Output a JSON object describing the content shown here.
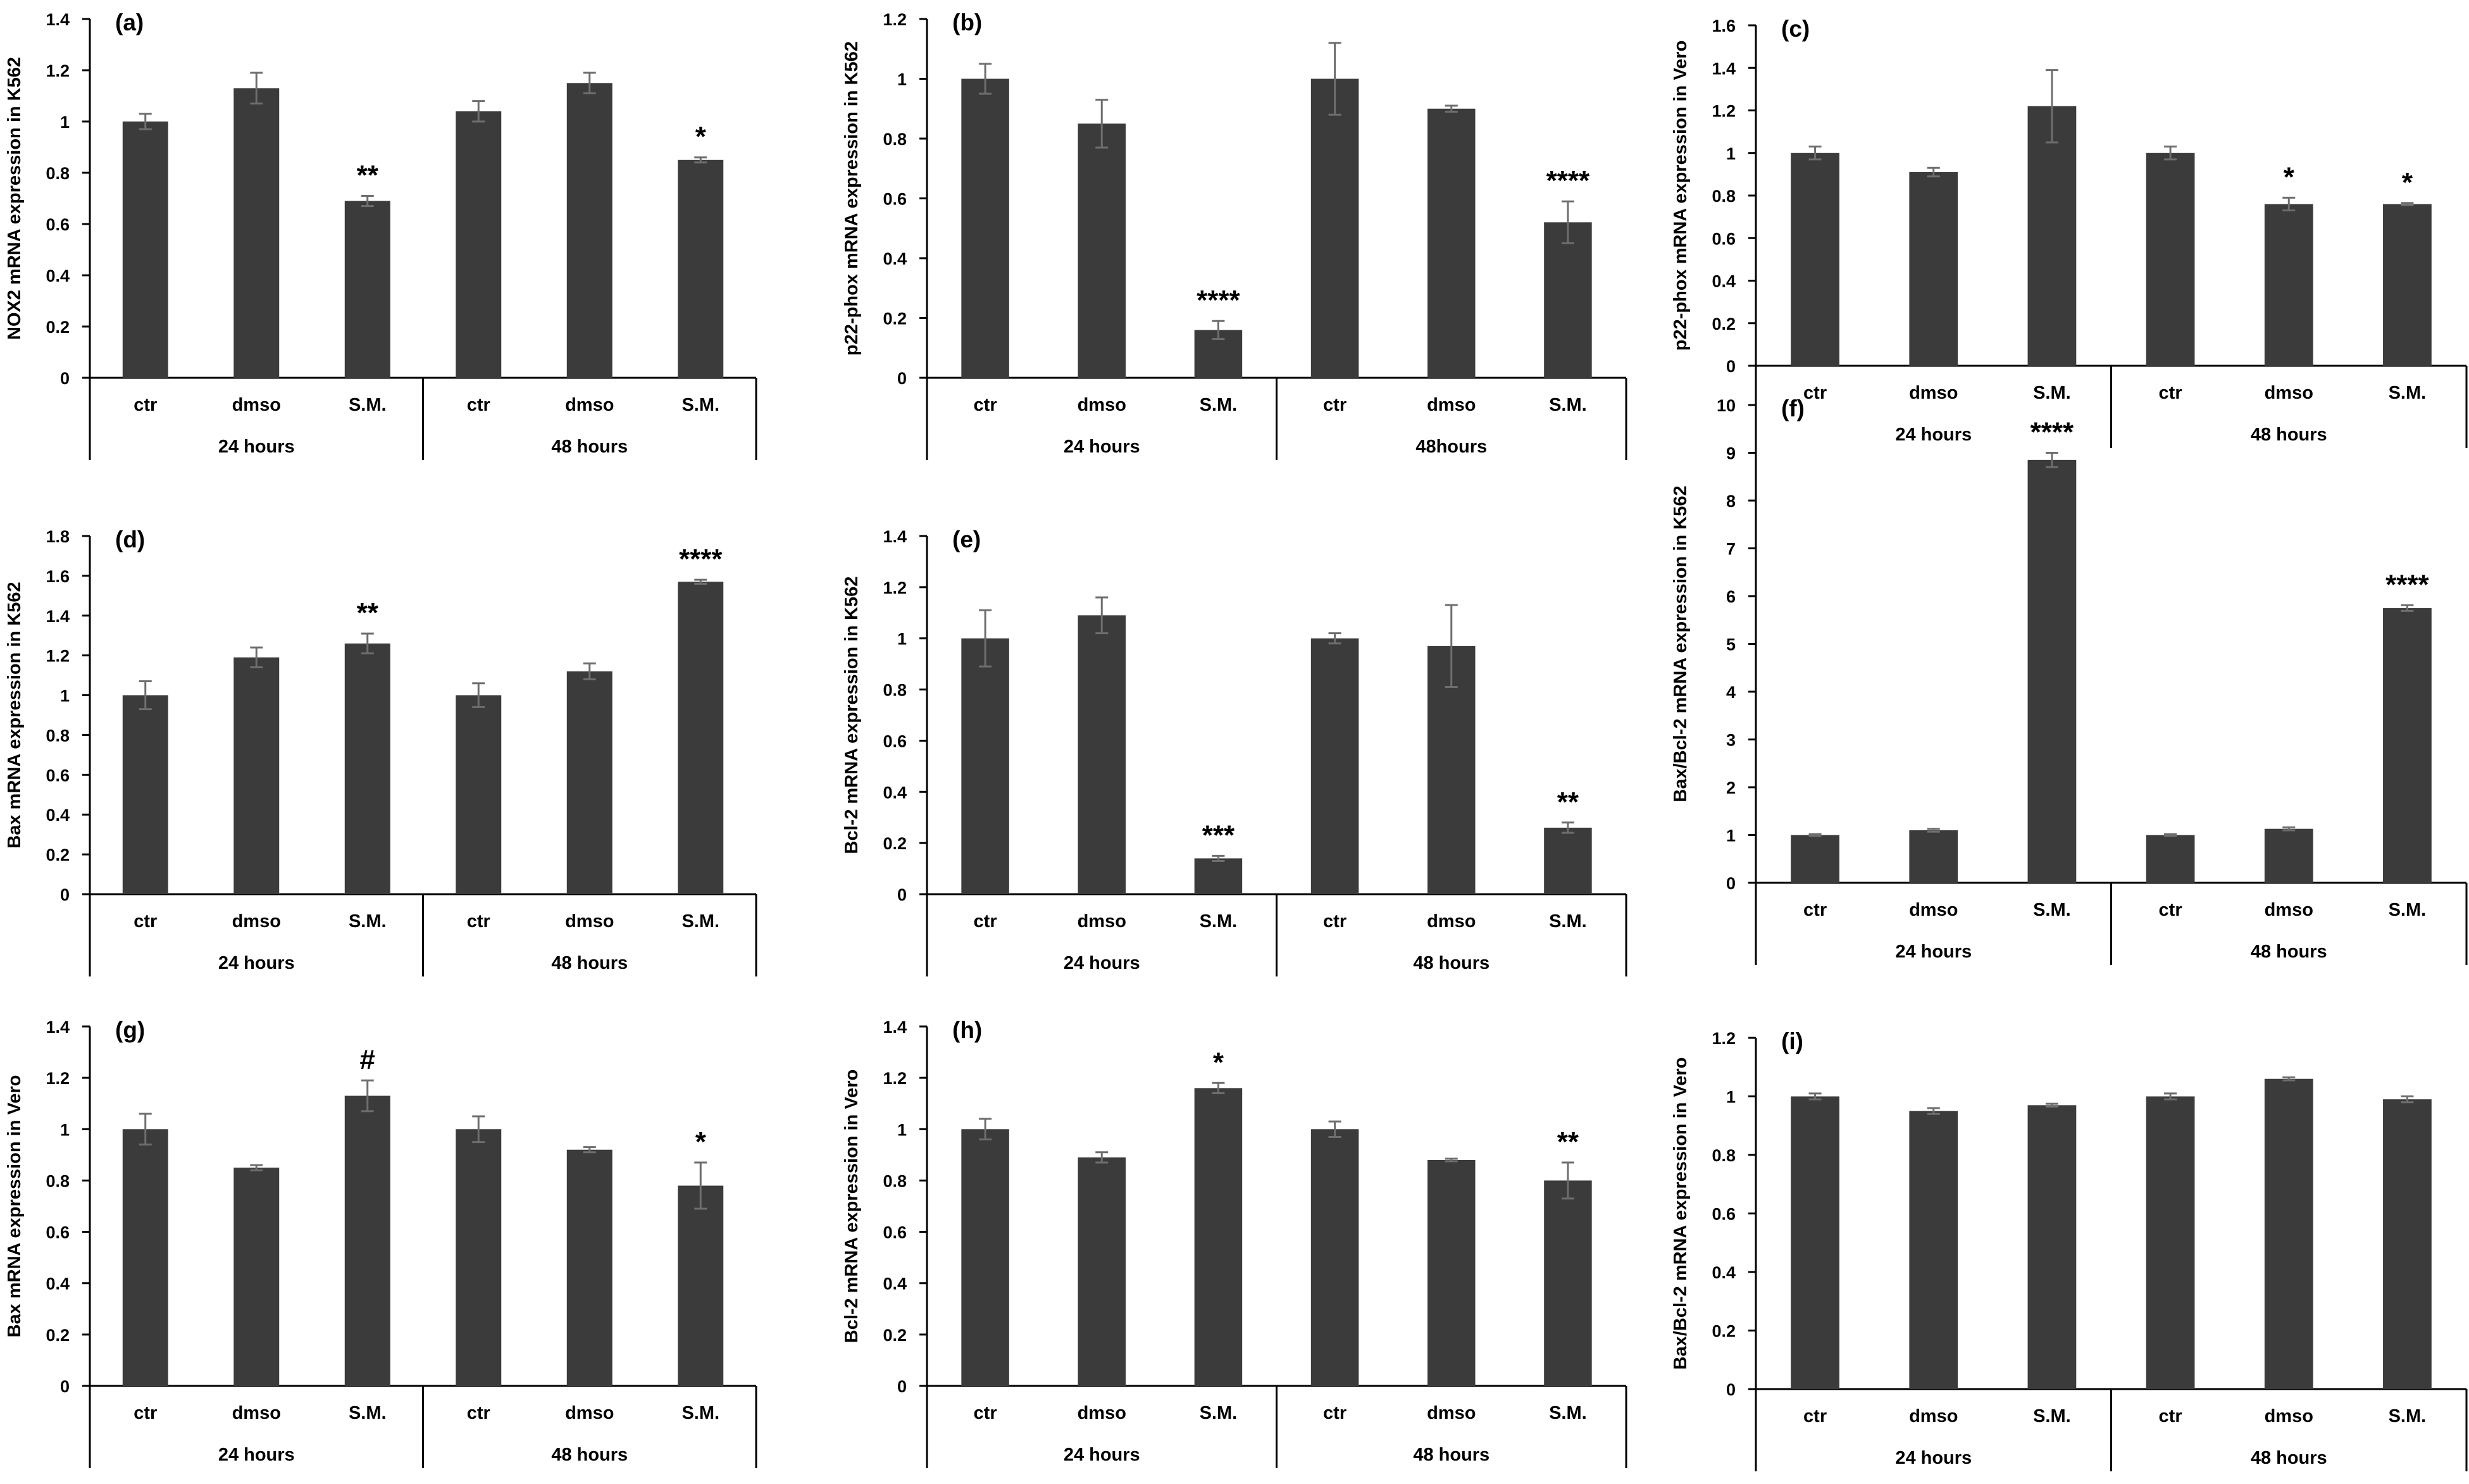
{
  "figure": {
    "bar_color": "#3b3b3b",
    "axis_color": "#000000",
    "errorbar_color": "#6e6e6e"
  },
  "chart_data": [
    {
      "panel": "(a)",
      "type": "bar",
      "ylabel": "NOX2 mRNA expression in K562",
      "ylim": [
        0,
        1.4
      ],
      "yticks": [
        "0",
        "0.2",
        "0.4",
        "0.6",
        "0.8",
        "1",
        "1.2",
        "1.4"
      ],
      "categories": [
        "ctr",
        "dmso",
        "S.M.",
        "ctr",
        "dmso",
        "S.M."
      ],
      "groups": [
        "24 hours",
        "48 hours"
      ],
      "values": [
        1.0,
        1.13,
        0.69,
        1.04,
        1.15,
        0.85
      ],
      "errors": [
        0.03,
        0.06,
        0.02,
        0.04,
        0.04,
        0.01
      ],
      "significance": [
        "",
        "",
        "**",
        "",
        "",
        "*"
      ]
    },
    {
      "panel": "(b)",
      "type": "bar",
      "ylabel": "p22-phox mRNA expression in K562",
      "ylim": [
        0,
        1.2
      ],
      "yticks": [
        "0",
        "0.2",
        "0.4",
        "0.6",
        "0.8",
        "1",
        "1.2"
      ],
      "categories": [
        "ctr",
        "dmso",
        "S.M.",
        "ctr",
        "dmso",
        "S.M."
      ],
      "groups": [
        "24 hours",
        "48hours"
      ],
      "values": [
        1.0,
        0.85,
        0.16,
        1.0,
        0.9,
        0.52
      ],
      "errors": [
        0.05,
        0.08,
        0.03,
        0.12,
        0.01,
        0.07
      ],
      "significance": [
        "",
        "",
        "****",
        "",
        "",
        "****"
      ]
    },
    {
      "panel": "(c)",
      "type": "bar",
      "ylabel": "p22-phox mRNA expression in Vero",
      "ylim": [
        0,
        1.6
      ],
      "yticks": [
        "0",
        "0.2",
        "0.4",
        "0.6",
        "0.8",
        "1",
        "1.2",
        "1.4",
        "1.6"
      ],
      "categories": [
        "ctr",
        "dmso",
        "S.M.",
        "ctr",
        "dmso",
        "S.M."
      ],
      "groups": [
        "24 hours",
        "48 hours"
      ],
      "values": [
        1.0,
        0.91,
        1.22,
        1.0,
        0.76,
        0.76
      ],
      "errors": [
        0.03,
        0.02,
        0.17,
        0.03,
        0.03,
        0.005
      ],
      "significance": [
        "",
        "",
        "",
        "",
        "*",
        "*"
      ]
    },
    {
      "panel": "(d)",
      "type": "bar",
      "ylabel": "Bax mRNA expression in K562",
      "ylim": [
        0,
        1.8
      ],
      "yticks": [
        "0",
        "0.2",
        "0.4",
        "0.6",
        "0.8",
        "1",
        "1.2",
        "1.4",
        "1.6",
        "1.8"
      ],
      "categories": [
        "ctr",
        "dmso",
        "S.M.",
        "ctr",
        "dmso",
        "S.M."
      ],
      "groups": [
        "24 hours",
        "48 hours"
      ],
      "values": [
        1.0,
        1.19,
        1.26,
        1.0,
        1.12,
        1.57
      ],
      "errors": [
        0.07,
        0.05,
        0.05,
        0.06,
        0.04,
        0.01
      ],
      "significance": [
        "",
        "",
        "**",
        "",
        "",
        "****"
      ]
    },
    {
      "panel": "(e)",
      "type": "bar",
      "ylabel": "Bcl-2 mRNA expression in K562",
      "ylim": [
        0,
        1.4
      ],
      "yticks": [
        "0",
        "0.2",
        "0.4",
        "0.6",
        "0.8",
        "1",
        "1.2",
        "1.4"
      ],
      "categories": [
        "ctr",
        "dmso",
        "S.M.",
        "ctr",
        "dmso",
        "S.M."
      ],
      "groups": [
        "24 hours",
        "48 hours"
      ],
      "values": [
        1.0,
        1.09,
        0.14,
        1.0,
        0.97,
        0.26
      ],
      "errors": [
        0.11,
        0.07,
        0.01,
        0.02,
        0.16,
        0.02
      ],
      "significance": [
        "",
        "",
        "***",
        "",
        "",
        "**"
      ]
    },
    {
      "panel": "(f)",
      "type": "bar",
      "ylabel": "Bax/Bcl-2 mRNA expression in K562",
      "ylim": [
        0,
        10
      ],
      "yticks": [
        "0",
        "1",
        "2",
        "3",
        "4",
        "5",
        "6",
        "7",
        "8",
        "9",
        "10"
      ],
      "categories": [
        "ctr",
        "dmso",
        "S.M.",
        "ctr",
        "dmso",
        "S.M."
      ],
      "groups": [
        "24 hours",
        "48 hours"
      ],
      "values": [
        1.0,
        1.1,
        8.85,
        1.0,
        1.13,
        5.75
      ],
      "errors": [
        0.02,
        0.03,
        0.15,
        0.02,
        0.03,
        0.06
      ],
      "significance": [
        "",
        "",
        "****",
        "",
        "",
        "****"
      ]
    },
    {
      "panel": "(g)",
      "type": "bar",
      "ylabel": "Bax mRNA expression in Vero",
      "ylim": [
        0,
        1.4
      ],
      "yticks": [
        "0",
        "0.2",
        "0.4",
        "0.6",
        "0.8",
        "1",
        "1.2",
        "1.4"
      ],
      "categories": [
        "ctr",
        "dmso",
        "S.M.",
        "ctr",
        "dmso",
        "S.M."
      ],
      "groups": [
        "24 hours",
        "48 hours"
      ],
      "values": [
        1.0,
        0.85,
        1.13,
        1.0,
        0.92,
        0.78
      ],
      "errors": [
        0.06,
        0.01,
        0.06,
        0.05,
        0.01,
        0.09
      ],
      "significance": [
        "",
        "",
        "#",
        "",
        "",
        "*"
      ]
    },
    {
      "panel": "(h)",
      "type": "bar",
      "ylabel": "Bcl-2 mRNA expression in Vero",
      "ylim": [
        0,
        1.4
      ],
      "yticks": [
        "0",
        "0.2",
        "0.4",
        "0.6",
        "0.8",
        "1",
        "1.2",
        "1.4"
      ],
      "categories": [
        "ctr",
        "dmso",
        "S.M.",
        "ctr",
        "dmso",
        "S.M."
      ],
      "groups": [
        "24 hours",
        "48 hours"
      ],
      "values": [
        1.0,
        0.89,
        1.16,
        1.0,
        0.88,
        0.8
      ],
      "errors": [
        0.04,
        0.02,
        0.02,
        0.03,
        0.005,
        0.07
      ],
      "significance": [
        "",
        "",
        "*",
        "",
        "",
        "**"
      ]
    },
    {
      "panel": "(i)",
      "type": "bar",
      "ylabel": "Bax/Bcl-2 mRNA expression in Vero",
      "ylim": [
        0,
        1.2
      ],
      "yticks": [
        "0",
        "0.2",
        "0.4",
        "0.6",
        "0.8",
        "1",
        "1.2"
      ],
      "categories": [
        "ctr",
        "dmso",
        "S.M.",
        "ctr",
        "dmso",
        "S.M."
      ],
      "groups": [
        "24 hours",
        "48 hours"
      ],
      "values": [
        1.0,
        0.95,
        0.97,
        1.0,
        1.06,
        0.99
      ],
      "errors": [
        0.01,
        0.01,
        0.005,
        0.01,
        0.005,
        0.01
      ],
      "significance": [
        "",
        "",
        "",
        "",
        "",
        ""
      ]
    }
  ]
}
